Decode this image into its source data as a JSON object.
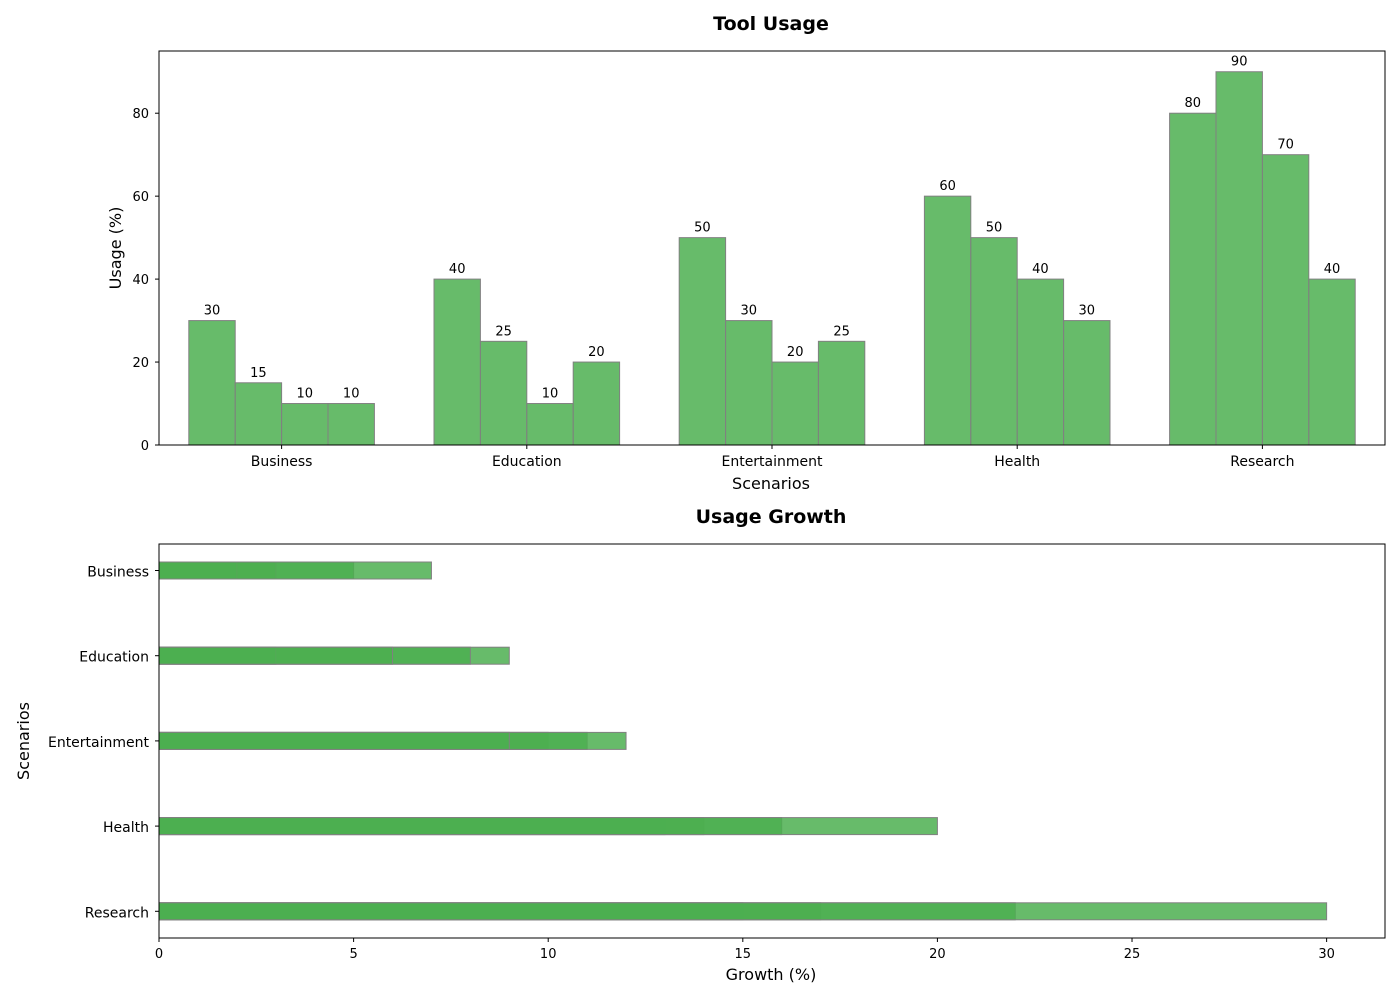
{
  "chart_data": [
    {
      "type": "bar",
      "title": "Tool Usage",
      "xlabel": "Scenarios",
      "ylabel": "Usage (%)",
      "categories": [
        "Business",
        "Education",
        "Entertainment",
        "Health",
        "Research"
      ],
      "series": [
        {
          "values": [
            30,
            40,
            50,
            60,
            80
          ]
        },
        {
          "values": [
            15,
            25,
            30,
            50,
            90
          ]
        },
        {
          "values": [
            10,
            10,
            20,
            40,
            70
          ]
        },
        {
          "values": [
            10,
            20,
            25,
            30,
            40
          ]
        }
      ],
      "ylim": [
        0,
        95
      ],
      "yticks": [
        0,
        20,
        40,
        60,
        80
      ],
      "bar_color": "#4caf50",
      "edge_color": "#808080",
      "data_labels": true,
      "grid": false
    },
    {
      "type": "bar",
      "orientation": "horizontal",
      "title": "Usage Growth",
      "xlabel": "Growth (%)",
      "ylabel": "Scenarios",
      "categories": [
        "Business",
        "Education",
        "Entertainment",
        "Health",
        "Research"
      ],
      "series": [
        {
          "values": [
            5,
            9,
            10,
            13,
            15
          ]
        },
        {
          "values": [
            3,
            8,
            11,
            14,
            17
          ]
        },
        {
          "values": [
            2,
            3,
            12,
            16,
            22
          ]
        },
        {
          "values": [
            7,
            6,
            9,
            20,
            30
          ]
        }
      ],
      "xlim": [
        0,
        31.5
      ],
      "xticks": [
        0,
        5,
        10,
        15,
        20,
        25,
        30
      ],
      "bar_color": "#4caf50",
      "edge_color": "#808080",
      "grid": false
    }
  ]
}
